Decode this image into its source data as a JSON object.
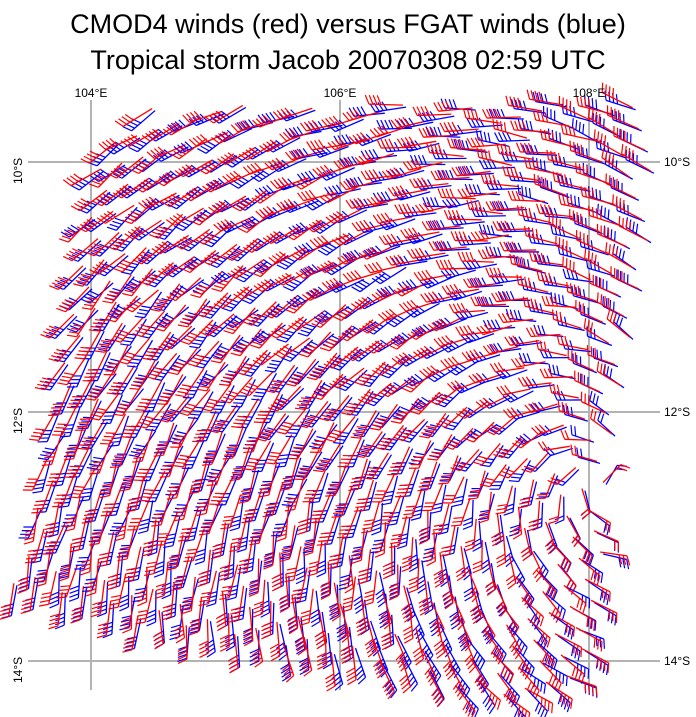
{
  "title": {
    "line1": "CMOD4 winds (red) versus FGAT winds (blue)",
    "line2": "Tropical storm Jacob  20070308 02:59 UTC"
  },
  "axes": {
    "lon_labels": [
      "104°E",
      "106°E",
      "108°E"
    ],
    "lat_labels_right": [
      "10°S",
      "12°S",
      "14°S"
    ],
    "lat_labels_left": [
      "10°S",
      "12°S",
      "14°S"
    ],
    "grid": true,
    "grid_color": "#b3b3b3",
    "lon_range_deg_e": [
      103.5,
      108.6
    ],
    "lat_range_deg_s": [
      9.4,
      14.2
    ]
  },
  "series": {
    "cmod4": {
      "name": "CMOD4",
      "color": "#ff0000"
    },
    "fgat": {
      "name": "FGAT",
      "color": "#0000ff"
    }
  },
  "storm_center": {
    "lon_e": 107.1,
    "lat_s": 12.55
  },
  "icons": {
    "barb": "wind-barb-icon"
  }
}
